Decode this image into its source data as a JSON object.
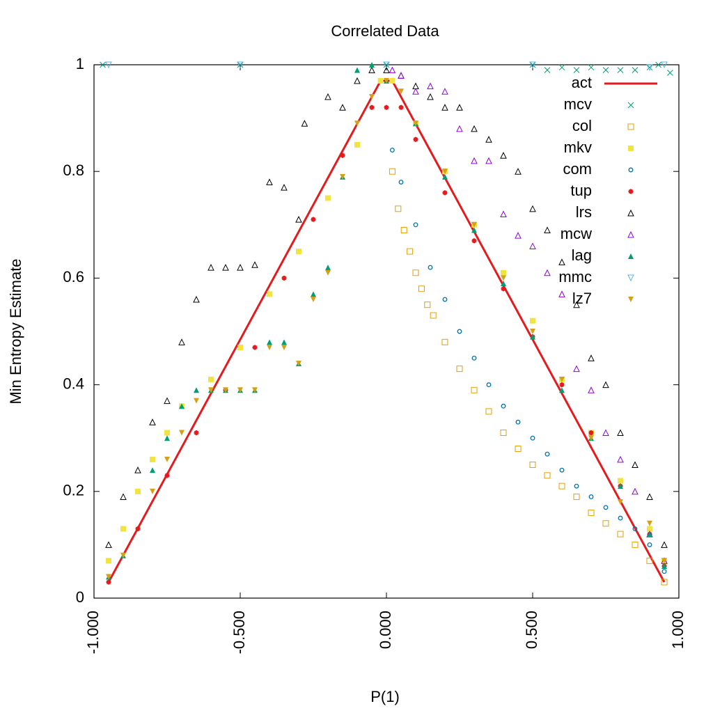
{
  "chart_data": {
    "type": "scatter",
    "title": "Correlated Data",
    "xlabel": "P(1)",
    "ylabel": "Min Entropy Estimate",
    "xlim": [
      -1.0,
      1.0
    ],
    "ylim": [
      0,
      1
    ],
    "x_ticks": [
      "-1.000",
      "-0.500",
      "0.000",
      "0.500",
      "1.000"
    ],
    "y_ticks": [
      "0",
      "0.2",
      "0.4",
      "0.6",
      "0.8",
      "1"
    ],
    "grid": false,
    "legend_position": "top-right",
    "series": [
      {
        "name": "act",
        "style": "line",
        "color": "#e41a1c",
        "points": [
          [
            -0.95,
            0.03
          ],
          [
            -0.02,
            0.97
          ],
          [
            0.02,
            0.97
          ],
          [
            0.95,
            0.03
          ]
        ]
      },
      {
        "name": "mcv",
        "style": "cross",
        "color": "#009e73",
        "points": [
          [
            -0.97,
            1.0
          ],
          [
            -0.5,
            1.0
          ],
          [
            0.0,
            1.0
          ],
          [
            0.5,
            1.0
          ],
          [
            0.55,
            0.99
          ],
          [
            0.6,
            0.995
          ],
          [
            0.65,
            0.99
          ],
          [
            0.7,
            0.995
          ],
          [
            0.75,
            0.99
          ],
          [
            0.8,
            0.99
          ],
          [
            0.85,
            0.99
          ],
          [
            0.9,
            0.995
          ],
          [
            0.93,
            1.0
          ],
          [
            0.97,
            0.985
          ]
        ]
      },
      {
        "name": "col",
        "style": "square-open",
        "color": "#e69f00",
        "points": [
          [
            0.02,
            0.8
          ],
          [
            0.04,
            0.73
          ],
          [
            0.06,
            0.69
          ],
          [
            0.08,
            0.65
          ],
          [
            0.1,
            0.61
          ],
          [
            0.12,
            0.58
          ],
          [
            0.14,
            0.55
          ],
          [
            0.16,
            0.53
          ],
          [
            0.2,
            0.48
          ],
          [
            0.25,
            0.43
          ],
          [
            0.3,
            0.39
          ],
          [
            0.35,
            0.35
          ],
          [
            0.4,
            0.31
          ],
          [
            0.45,
            0.28
          ],
          [
            0.5,
            0.25
          ],
          [
            0.55,
            0.23
          ],
          [
            0.6,
            0.21
          ],
          [
            0.65,
            0.19
          ],
          [
            0.7,
            0.16
          ],
          [
            0.75,
            0.14
          ],
          [
            0.8,
            0.12
          ],
          [
            0.85,
            0.1
          ],
          [
            0.9,
            0.07
          ],
          [
            0.95,
            0.03
          ]
        ]
      },
      {
        "name": "mkv",
        "style": "square-filled",
        "color": "#f0e442",
        "points": [
          [
            -0.95,
            0.07
          ],
          [
            -0.9,
            0.13
          ],
          [
            -0.85,
            0.2
          ],
          [
            -0.8,
            0.26
          ],
          [
            -0.75,
            0.31
          ],
          [
            -0.7,
            0.36
          ],
          [
            -0.6,
            0.41
          ],
          [
            -0.5,
            0.47
          ],
          [
            -0.4,
            0.57
          ],
          [
            -0.3,
            0.65
          ],
          [
            -0.2,
            0.75
          ],
          [
            -0.1,
            0.85
          ],
          [
            -0.02,
            0.97
          ],
          [
            0.02,
            0.97
          ],
          [
            0.1,
            0.89
          ],
          [
            0.2,
            0.8
          ],
          [
            0.3,
            0.7
          ],
          [
            0.4,
            0.61
          ],
          [
            0.5,
            0.52
          ],
          [
            0.6,
            0.41
          ],
          [
            0.7,
            0.31
          ],
          [
            0.8,
            0.22
          ],
          [
            0.9,
            0.13
          ],
          [
            0.95,
            0.07
          ]
        ]
      },
      {
        "name": "com",
        "style": "circle-open",
        "color": "#0072b2",
        "points": [
          [
            0.02,
            0.84
          ],
          [
            0.05,
            0.78
          ],
          [
            0.1,
            0.7
          ],
          [
            0.15,
            0.62
          ],
          [
            0.2,
            0.56
          ],
          [
            0.25,
            0.5
          ],
          [
            0.3,
            0.45
          ],
          [
            0.35,
            0.4
          ],
          [
            0.4,
            0.36
          ],
          [
            0.45,
            0.33
          ],
          [
            0.5,
            0.3
          ],
          [
            0.55,
            0.27
          ],
          [
            0.6,
            0.24
          ],
          [
            0.65,
            0.21
          ],
          [
            0.7,
            0.19
          ],
          [
            0.75,
            0.17
          ],
          [
            0.8,
            0.15
          ],
          [
            0.85,
            0.13
          ],
          [
            0.9,
            0.1
          ],
          [
            0.95,
            0.05
          ]
        ]
      },
      {
        "name": "tup",
        "style": "star",
        "color": "#e41a1c",
        "points": [
          [
            -0.95,
            0.03
          ],
          [
            -0.85,
            0.13
          ],
          [
            -0.75,
            0.23
          ],
          [
            -0.65,
            0.31
          ],
          [
            -0.55,
            0.39
          ],
          [
            -0.45,
            0.47
          ],
          [
            -0.35,
            0.6
          ],
          [
            -0.25,
            0.71
          ],
          [
            -0.15,
            0.83
          ],
          [
            -0.05,
            0.92
          ],
          [
            0.0,
            0.92
          ],
          [
            0.05,
            0.92
          ],
          [
            0.1,
            0.86
          ],
          [
            0.2,
            0.76
          ],
          [
            0.3,
            0.67
          ],
          [
            0.4,
            0.58
          ],
          [
            0.5,
            0.49
          ],
          [
            0.6,
            0.4
          ],
          [
            0.7,
            0.31
          ],
          [
            0.8,
            0.21
          ],
          [
            0.9,
            0.12
          ],
          [
            0.95,
            0.06
          ]
        ]
      },
      {
        "name": "lrs",
        "style": "triangle-open",
        "color": "#000000",
        "points": [
          [
            -0.95,
            0.1
          ],
          [
            -0.9,
            0.19
          ],
          [
            -0.85,
            0.24
          ],
          [
            -0.8,
            0.33
          ],
          [
            -0.75,
            0.37
          ],
          [
            -0.7,
            0.48
          ],
          [
            -0.65,
            0.56
          ],
          [
            -0.6,
            0.62
          ],
          [
            -0.55,
            0.62
          ],
          [
            -0.5,
            0.62
          ],
          [
            -0.45,
            0.625
          ],
          [
            -0.4,
            0.78
          ],
          [
            -0.35,
            0.77
          ],
          [
            -0.3,
            0.71
          ],
          [
            -0.28,
            0.89
          ],
          [
            -0.2,
            0.94
          ],
          [
            -0.15,
            0.92
          ],
          [
            -0.1,
            0.97
          ],
          [
            -0.05,
            0.99
          ],
          [
            0.0,
            0.99
          ],
          [
            0.05,
            0.98
          ],
          [
            0.1,
            0.96
          ],
          [
            0.15,
            0.94
          ],
          [
            0.2,
            0.92
          ],
          [
            0.25,
            0.92
          ],
          [
            0.3,
            0.88
          ],
          [
            0.35,
            0.86
          ],
          [
            0.4,
            0.83
          ],
          [
            0.45,
            0.8
          ],
          [
            0.5,
            0.73
          ],
          [
            0.55,
            0.69
          ],
          [
            0.6,
            0.63
          ],
          [
            0.65,
            0.55
          ],
          [
            0.7,
            0.45
          ],
          [
            0.75,
            0.4
          ],
          [
            0.8,
            0.31
          ],
          [
            0.85,
            0.25
          ],
          [
            0.9,
            0.19
          ],
          [
            0.95,
            0.1
          ]
        ]
      },
      {
        "name": "mcw",
        "style": "triangle-open",
        "color": "#9400d3",
        "points": [
          [
            0.02,
            0.99
          ],
          [
            0.05,
            0.98
          ],
          [
            0.1,
            0.95
          ],
          [
            0.15,
            0.96
          ],
          [
            0.2,
            0.95
          ],
          [
            0.25,
            0.88
          ],
          [
            0.3,
            0.82
          ],
          [
            0.35,
            0.82
          ],
          [
            0.4,
            0.72
          ],
          [
            0.45,
            0.68
          ],
          [
            0.5,
            0.66
          ],
          [
            0.55,
            0.61
          ],
          [
            0.6,
            0.57
          ],
          [
            0.65,
            0.43
          ],
          [
            0.7,
            0.39
          ],
          [
            0.75,
            0.31
          ],
          [
            0.8,
            0.26
          ],
          [
            0.85,
            0.2
          ],
          [
            0.9,
            0.12
          ],
          [
            0.95,
            0.07
          ]
        ]
      },
      {
        "name": "lag",
        "style": "triangle-filled",
        "color": "#009e73",
        "points": [
          [
            -0.95,
            0.04
          ],
          [
            -0.9,
            0.08
          ],
          [
            -0.8,
            0.24
          ],
          [
            -0.75,
            0.3
          ],
          [
            -0.7,
            0.36
          ],
          [
            -0.65,
            0.39
          ],
          [
            -0.6,
            0.39
          ],
          [
            -0.55,
            0.39
          ],
          [
            -0.5,
            0.39
          ],
          [
            -0.45,
            0.39
          ],
          [
            -0.4,
            0.48
          ],
          [
            -0.35,
            0.48
          ],
          [
            -0.3,
            0.44
          ],
          [
            -0.25,
            0.57
          ],
          [
            -0.2,
            0.62
          ],
          [
            -0.15,
            0.79
          ],
          [
            -0.1,
            0.99
          ],
          [
            -0.05,
            1.0
          ],
          [
            0.0,
            0.97
          ],
          [
            0.1,
            0.89
          ],
          [
            0.2,
            0.79
          ],
          [
            0.3,
            0.69
          ],
          [
            0.4,
            0.59
          ],
          [
            0.5,
            0.49
          ],
          [
            0.6,
            0.39
          ],
          [
            0.7,
            0.3
          ],
          [
            0.8,
            0.21
          ],
          [
            0.9,
            0.12
          ],
          [
            0.95,
            0.06
          ]
        ]
      },
      {
        "name": "mmc",
        "style": "triangle-down-open",
        "color": "#56b4e9",
        "points": [
          [
            -0.95,
            1.0
          ],
          [
            -0.5,
            1.0
          ],
          [
            0.0,
            1.0
          ],
          [
            0.5,
            1.0
          ],
          [
            0.9,
            0.995
          ],
          [
            0.95,
            1.0
          ]
        ]
      },
      {
        "name": "lz7",
        "style": "triangle-down-filled",
        "color": "#d4a017",
        "points": [
          [
            -0.95,
            0.04
          ],
          [
            -0.9,
            0.08
          ],
          [
            -0.8,
            0.2
          ],
          [
            -0.75,
            0.26
          ],
          [
            -0.7,
            0.31
          ],
          [
            -0.65,
            0.37
          ],
          [
            -0.6,
            0.39
          ],
          [
            -0.55,
            0.39
          ],
          [
            -0.5,
            0.39
          ],
          [
            -0.45,
            0.39
          ],
          [
            -0.4,
            0.47
          ],
          [
            -0.35,
            0.47
          ],
          [
            -0.3,
            0.44
          ],
          [
            -0.25,
            0.56
          ],
          [
            -0.2,
            0.61
          ],
          [
            -0.15,
            0.79
          ],
          [
            -0.1,
            0.89
          ],
          [
            -0.05,
            0.94
          ],
          [
            0.0,
            0.97
          ],
          [
            0.05,
            0.95
          ],
          [
            0.1,
            0.89
          ],
          [
            0.2,
            0.8
          ],
          [
            0.3,
            0.7
          ],
          [
            0.4,
            0.6
          ],
          [
            0.5,
            0.5
          ],
          [
            0.6,
            0.41
          ],
          [
            0.7,
            0.3
          ],
          [
            0.8,
            0.18
          ],
          [
            0.9,
            0.14
          ],
          [
            0.95,
            0.07
          ]
        ]
      }
    ]
  }
}
